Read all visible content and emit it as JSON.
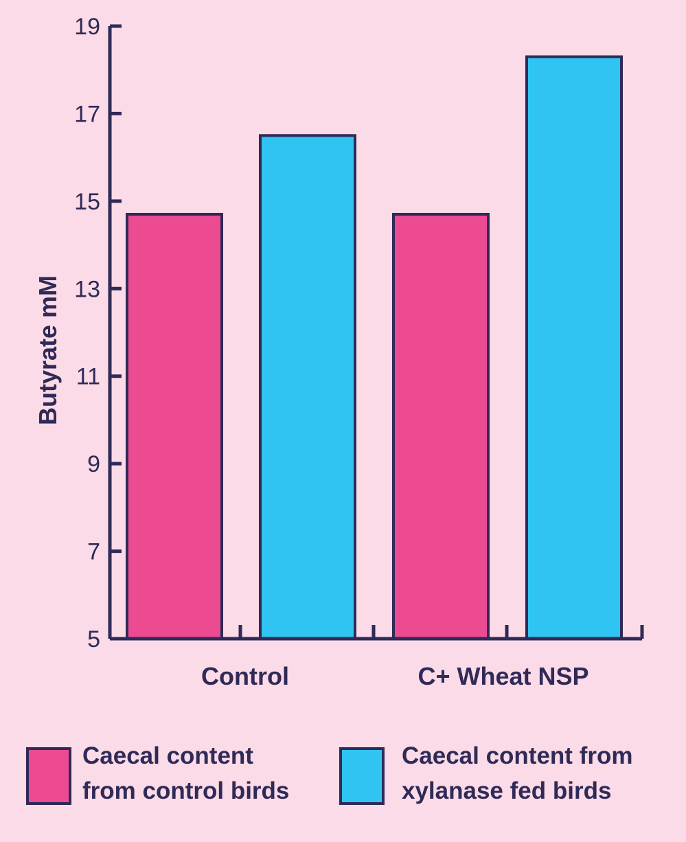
{
  "chart_data": {
    "type": "bar",
    "title": "",
    "xlabel": "",
    "ylabel": "Butyrate mM",
    "ylim": [
      5,
      19
    ],
    "yticks": [
      5,
      7,
      9,
      11,
      13,
      15,
      17,
      19
    ],
    "categories": [
      "Control",
      "C+ Wheat NSP"
    ],
    "series": [
      {
        "name": "Caecal content from control birds",
        "color": "#ec4b92",
        "values": [
          14.7,
          14.7
        ]
      },
      {
        "name": "Caecal content from xylanase fed birds",
        "color": "#30c4f2",
        "values": [
          16.5,
          18.3
        ]
      }
    ],
    "legend": [
      {
        "lines": [
          "Caecal content",
          "from control birds"
        ],
        "color": "#ec4b92"
      },
      {
        "lines": [
          "Caecal content from",
          "xylanase fed birds"
        ],
        "color": "#30c4f2"
      }
    ],
    "grid": false
  },
  "colors": {
    "background": "#fbdbe7",
    "axis": "#2f2a57"
  }
}
